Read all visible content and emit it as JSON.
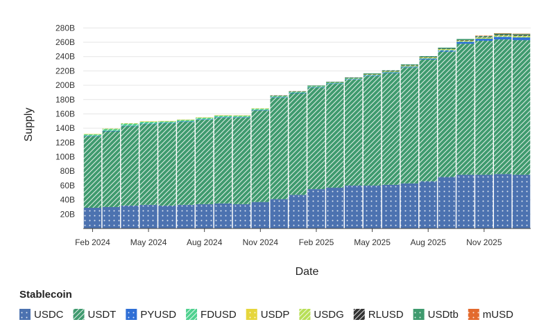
{
  "chart_data": {
    "type": "bar",
    "stacked": true,
    "xlabel": "Date",
    "ylabel": "Supply",
    "legend_title": "Stablecoin",
    "legend_position": "bottom",
    "grid": true,
    "ylim": [
      0,
      290
    ],
    "y_ticks": [
      "20B",
      "40B",
      "60B",
      "80B",
      "100B",
      "120B",
      "140B",
      "160B",
      "180B",
      "200B",
      "220B",
      "240B",
      "260B",
      "280B"
    ],
    "y_tick_values": [
      20,
      40,
      60,
      80,
      100,
      120,
      140,
      160,
      180,
      200,
      220,
      240,
      260,
      280
    ],
    "x_tick_labels": [
      "Feb 2024",
      "May 2024",
      "Aug 2024",
      "Nov 2024",
      "Feb 2025",
      "May 2025",
      "Aug 2025",
      "Nov 2025"
    ],
    "x_tick_indices": [
      0,
      3,
      6,
      9,
      12,
      15,
      18,
      21
    ],
    "categories": [
      "2024-02",
      "2024-03",
      "2024-04",
      "2024-05",
      "2024-06",
      "2024-07",
      "2024-08",
      "2024-09",
      "2024-10",
      "2024-11",
      "2024-12",
      "2025-01",
      "2025-02",
      "2025-03",
      "2025-04",
      "2025-05",
      "2025-06",
      "2025-07",
      "2025-08",
      "2025-09",
      "2025-10",
      "2025-11",
      "2025-12",
      "2026-01"
    ],
    "series": [
      {
        "name": "USDC",
        "color": "#4c72b0",
        "pattern": "dots",
        "values": [
          29,
          30,
          32,
          33,
          32,
          33,
          34,
          35,
          34,
          37,
          41,
          47,
          55,
          57,
          60,
          60,
          61,
          63,
          66,
          72,
          75,
          75,
          76,
          75
        ]
      },
      {
        "name": "USDT",
        "color": "#3f9a6e",
        "pattern": "diag",
        "values": [
          100,
          106,
          111,
          113,
          115,
          116,
          118,
          120,
          121,
          128,
          142,
          142,
          142,
          145,
          148,
          153,
          156,
          162,
          170,
          175,
          183,
          187,
          188,
          188
        ]
      },
      {
        "name": "PYUSD",
        "color": "#2f6fd6",
        "pattern": "dots",
        "values": [
          0.3,
          0.4,
          0.4,
          0.4,
          0.4,
          0.4,
          0.5,
          0.5,
          0.5,
          0.5,
          0.5,
          0.5,
          0.5,
          0.6,
          0.6,
          0.8,
          0.9,
          0.9,
          1.2,
          1.6,
          2.5,
          2.8,
          3.5,
          3.7
        ]
      },
      {
        "name": "FDUSD",
        "color": "#4fd18f",
        "pattern": "diag",
        "values": [
          2.5,
          3,
          3.5,
          3,
          2.5,
          2.5,
          2.5,
          2.5,
          2.3,
          2.1,
          2,
          1.8,
          1.7,
          1.6,
          1.5,
          1.4,
          1.3,
          1.2,
          1.1,
          1.1,
          1,
          1,
          1,
          0.9
        ]
      },
      {
        "name": "USDP",
        "color": "#e6d63c",
        "pattern": "dots",
        "values": [
          0.1,
          0.1,
          0.1,
          0.1,
          0.1,
          0.1,
          0.1,
          0.1,
          0.1,
          0.1,
          0.1,
          0.1,
          0.1,
          0.1,
          0.1,
          0.1,
          0.1,
          0.1,
          0.1,
          0.1,
          0.1,
          0.1,
          0.1,
          0.1
        ]
      },
      {
        "name": "USDG",
        "color": "#b8df57",
        "pattern": "diag",
        "values": [
          0,
          0,
          0,
          0,
          0,
          0,
          0,
          0,
          0,
          0,
          0.1,
          0.1,
          0.1,
          0.1,
          0.1,
          0.2,
          0.3,
          0.4,
          0.5,
          0.6,
          0.7,
          0.8,
          1,
          1.2
        ]
      },
      {
        "name": "RLUSD",
        "color": "#333333",
        "pattern": "diag",
        "values": [
          0,
          0,
          0,
          0,
          0,
          0,
          0,
          0,
          0,
          0,
          0.1,
          0.1,
          0.1,
          0.1,
          0.1,
          0.2,
          0.3,
          0.4,
          0.5,
          0.6,
          0.7,
          0.8,
          1,
          1.1
        ]
      },
      {
        "name": "USDtb",
        "color": "#3f9a6e",
        "pattern": "dots",
        "values": [
          0,
          0,
          0,
          0,
          0,
          0,
          0,
          0,
          0,
          0,
          0,
          0,
          0.1,
          0.3,
          0.5,
          1,
          1,
          1.2,
          1.3,
          1.5,
          1.6,
          1.7,
          1.8,
          1.8
        ]
      },
      {
        "name": "mUSD",
        "color": "#e36a2e",
        "pattern": "dots",
        "values": [
          0,
          0,
          0,
          0,
          0,
          0,
          0,
          0,
          0,
          0,
          0,
          0,
          0,
          0,
          0,
          0,
          0,
          0,
          0,
          0,
          0,
          0.1,
          0.1,
          0.1
        ]
      }
    ]
  }
}
